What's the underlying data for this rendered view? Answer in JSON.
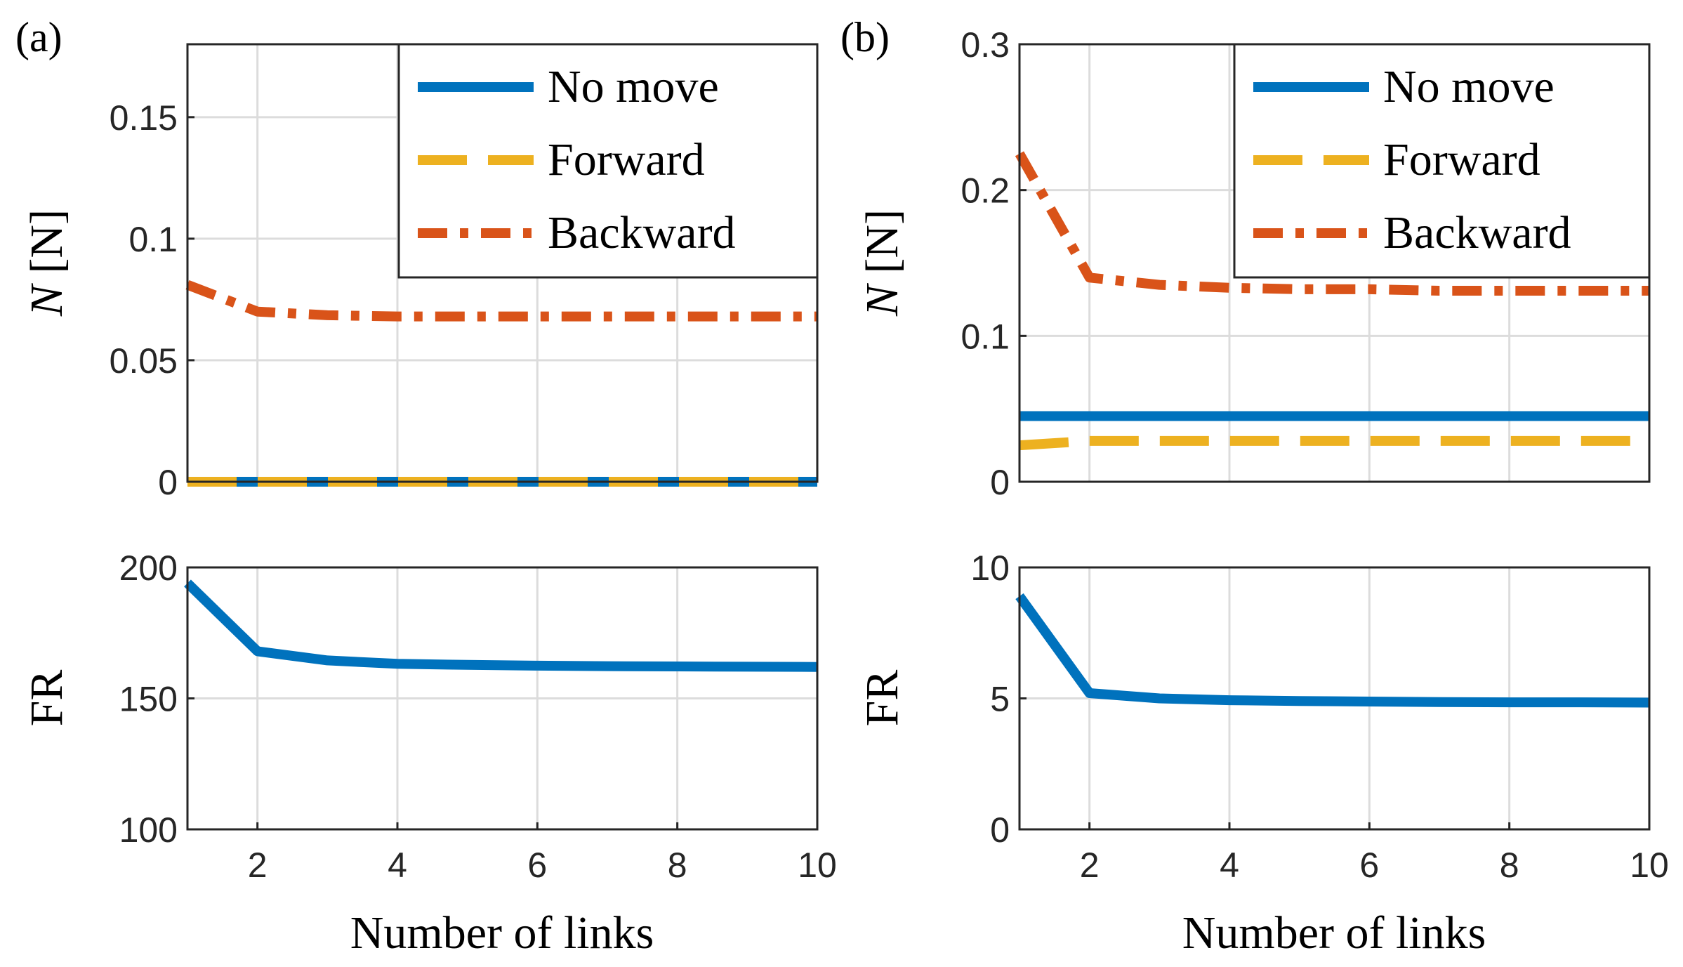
{
  "panels": [
    {
      "label": "(a)",
      "top": {
        "ylabel_var": "N",
        "ylabel_unit": "[N]",
        "ylim": [
          0,
          0.18
        ],
        "yticks": [
          0,
          0.05,
          0.1,
          0.15
        ],
        "ytick_labels": [
          "0",
          "0.05",
          "0.1",
          "0.15"
        ],
        "legend": [
          "No move",
          "Forward",
          "Backward"
        ]
      },
      "bottom": {
        "ylabel": "FR",
        "ylim": [
          100,
          200
        ],
        "yticks": [
          100,
          150,
          200
        ],
        "ytick_labels": [
          "100",
          "150",
          "200"
        ],
        "xlabel": "Number of links",
        "xtick_labels": [
          "2",
          "4",
          "6",
          "8",
          "10"
        ]
      }
    },
    {
      "label": "(b)",
      "top": {
        "ylabel_var": "N",
        "ylabel_unit": "[N]",
        "ylim": [
          0,
          0.3
        ],
        "yticks": [
          0,
          0.1,
          0.2,
          0.3
        ],
        "ytick_labels": [
          "0",
          "0.1",
          "0.2",
          "0.3"
        ],
        "legend": [
          "No move",
          "Forward",
          "Backward"
        ]
      },
      "bottom": {
        "ylabel": "FR",
        "ylim": [
          0,
          10
        ],
        "yticks": [
          0,
          5,
          10
        ],
        "ytick_labels": [
          "0",
          "5",
          "10"
        ],
        "xlabel": "Number of links",
        "xtick_labels": [
          "2",
          "4",
          "6",
          "8",
          "10"
        ]
      }
    }
  ],
  "colors": {
    "no_move": "#0072BD",
    "forward": "#EDB120",
    "backward": "#D95319"
  },
  "chart_data": [
    {
      "type": "line",
      "title": "(a) top",
      "xlabel": "",
      "ylabel": "N [N]",
      "xlim": [
        1,
        10
      ],
      "ylim": [
        0,
        0.18
      ],
      "x": [
        1,
        2,
        3,
        4,
        5,
        6,
        7,
        8,
        9,
        10
      ],
      "series": [
        {
          "name": "No move",
          "values": [
            0,
            0,
            0,
            0,
            0,
            0,
            0,
            0,
            0,
            0
          ]
        },
        {
          "name": "Forward",
          "values": [
            0,
            0,
            0,
            0,
            0,
            0,
            0,
            0,
            0,
            0
          ]
        },
        {
          "name": "Backward",
          "values": [
            0.081,
            0.07,
            0.0685,
            0.068,
            0.068,
            0.068,
            0.068,
            0.068,
            0.068,
            0.068
          ]
        }
      ]
    },
    {
      "type": "line",
      "title": "(a) bottom",
      "xlabel": "Number of links",
      "ylabel": "FR",
      "xlim": [
        1,
        10
      ],
      "ylim": [
        100,
        200
      ],
      "x": [
        1,
        2,
        3,
        4,
        5,
        6,
        7,
        8,
        9,
        10
      ],
      "series": [
        {
          "name": "FR",
          "values": [
            194,
            168,
            164.5,
            163.2,
            162.8,
            162.5,
            162.3,
            162.2,
            162.1,
            162
          ]
        }
      ]
    },
    {
      "type": "line",
      "title": "(b) top",
      "xlabel": "",
      "ylabel": "N [N]",
      "xlim": [
        1,
        10
      ],
      "ylim": [
        0,
        0.3
      ],
      "x": [
        1,
        2,
        3,
        4,
        5,
        6,
        7,
        8,
        9,
        10
      ],
      "series": [
        {
          "name": "No move",
          "values": [
            0.045,
            0.045,
            0.045,
            0.045,
            0.045,
            0.045,
            0.045,
            0.045,
            0.045,
            0.045
          ]
        },
        {
          "name": "Forward",
          "values": [
            0.025,
            0.028,
            0.028,
            0.028,
            0.028,
            0.028,
            0.028,
            0.028,
            0.028,
            0.028
          ]
        },
        {
          "name": "Backward",
          "values": [
            0.225,
            0.14,
            0.135,
            0.133,
            0.132,
            0.132,
            0.131,
            0.131,
            0.131,
            0.131
          ]
        }
      ]
    },
    {
      "type": "line",
      "title": "(b) bottom",
      "xlabel": "Number of links",
      "ylabel": "FR",
      "xlim": [
        1,
        10
      ],
      "ylim": [
        0,
        10
      ],
      "x": [
        1,
        2,
        3,
        4,
        5,
        6,
        7,
        8,
        9,
        10
      ],
      "series": [
        {
          "name": "FR",
          "values": [
            8.9,
            5.2,
            5.0,
            4.93,
            4.9,
            4.88,
            4.86,
            4.85,
            4.85,
            4.84
          ]
        }
      ]
    }
  ]
}
